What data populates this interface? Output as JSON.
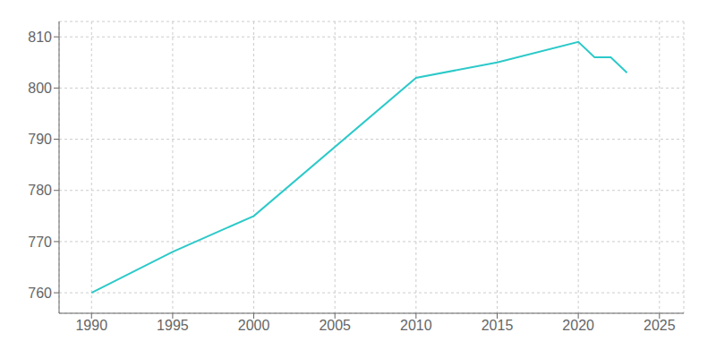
{
  "chart_data": {
    "type": "line",
    "x": [
      1990,
      1995,
      2000,
      2010,
      2015,
      2020,
      2021,
      2022,
      2023
    ],
    "values": [
      760,
      768,
      775,
      802,
      805,
      809,
      806,
      806,
      803
    ],
    "color": "#2dc9c9",
    "xlim": [
      1988,
      2026.5
    ],
    "ylim": [
      756,
      813
    ],
    "xticks": [
      1990,
      1995,
      2000,
      2005,
      2010,
      2015,
      2020,
      2025
    ],
    "yticks": [
      760,
      770,
      780,
      790,
      800,
      810
    ],
    "grid": true
  }
}
